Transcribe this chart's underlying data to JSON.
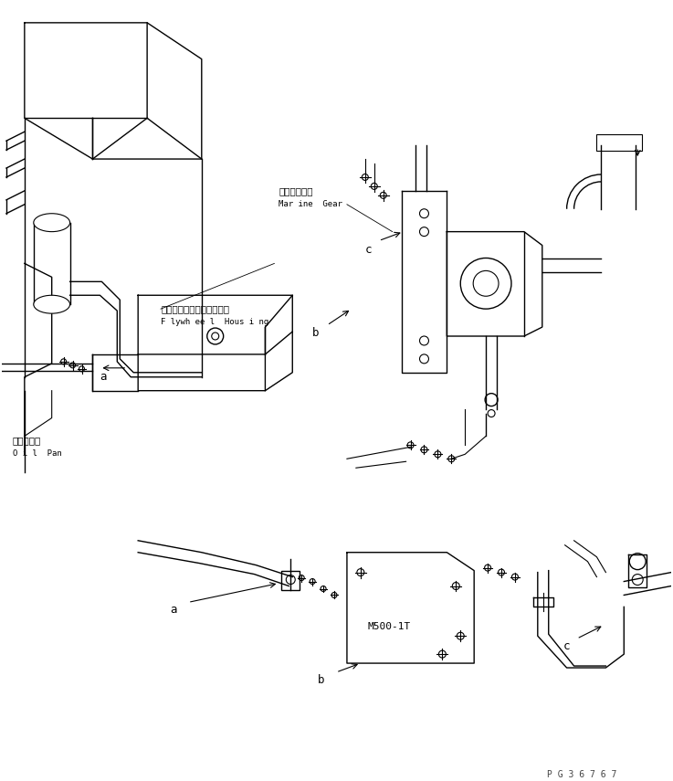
{
  "background_color": "#ffffff",
  "line_color": "#000000",
  "page_id": "P G 3 6 7 6 7",
  "labels": {
    "marine_gear_jp": "マリンギヤー",
    "marine_gear_en": "Mar ine  Gear",
    "flywheel_jp": "フライホイールハウジング",
    "flywheel_en": "F lywh ee l  Hous i ng",
    "oil_pan_jp": "オイルパン",
    "oil_pan_en": "O i l  Pan",
    "model": "M500-1T"
  },
  "figsize": [
    7.37,
    8.55
  ],
  "dpi": 100
}
